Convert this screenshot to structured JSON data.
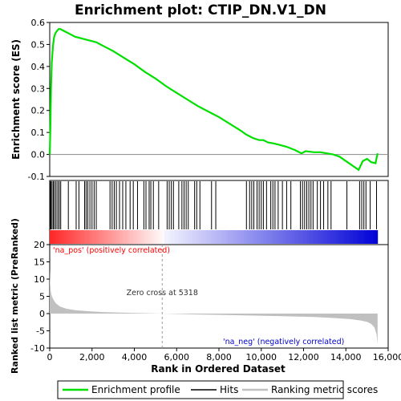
{
  "chart_data": {
    "type": "line",
    "title": "Enrichment plot: CTIP_DN.V1_DN",
    "x_axis": {
      "label": "Rank in Ordered Dataset",
      "range": [
        0,
        16000
      ],
      "ticks": [
        "0",
        "2,000",
        "4,000",
        "6,000",
        "8,000",
        "10,000",
        "12,000",
        "14,000",
        "16,000"
      ],
      "tick_values": [
        0,
        2000,
        4000,
        6000,
        8000,
        10000,
        12000,
        14000,
        16000
      ]
    },
    "top_panel": {
      "ylabel": "Enrichment score (ES)",
      "ylim": [
        -0.1,
        0.6
      ],
      "yticks": [
        "-0.1",
        "0.0",
        "0.1",
        "0.2",
        "0.3",
        "0.4",
        "0.5",
        "0.6"
      ],
      "ytick_values": [
        -0.1,
        0.0,
        0.1,
        0.2,
        0.3,
        0.4,
        0.5,
        0.6
      ],
      "series": [
        {
          "name": "Enrichment profile",
          "color": "#00e000",
          "x": [
            0,
            30,
            60,
            100,
            150,
            200,
            260,
            330,
            420,
            500,
            600,
            700,
            900,
            1200,
            1600,
            2000,
            2200,
            2500,
            3000,
            3500,
            4000,
            4500,
            5000,
            5500,
            6000,
            6500,
            7000,
            7500,
            8000,
            8500,
            9000,
            9300,
            9600,
            9900,
            10100,
            10300,
            10600,
            10800,
            11200,
            11600,
            11900,
            12100,
            12500,
            12800,
            13100,
            13400,
            13700,
            14000,
            14300,
            14600,
            14800,
            15000,
            15200,
            15400,
            15500
          ],
          "values": [
            0.0,
            0.12,
            0.3,
            0.42,
            0.49,
            0.53,
            0.55,
            0.56,
            0.57,
            0.57,
            0.565,
            0.56,
            0.55,
            0.535,
            0.525,
            0.515,
            0.51,
            0.495,
            0.47,
            0.44,
            0.41,
            0.375,
            0.345,
            0.31,
            0.28,
            0.25,
            0.22,
            0.195,
            0.17,
            0.14,
            0.11,
            0.09,
            0.075,
            0.065,
            0.065,
            0.055,
            0.05,
            0.045,
            0.035,
            0.02,
            0.005,
            0.015,
            0.01,
            0.01,
            0.005,
            0.0,
            -0.01,
            -0.03,
            -0.05,
            -0.07,
            -0.03,
            -0.02,
            -0.035,
            -0.04,
            0.005
          ]
        }
      ]
    },
    "hits_panel": {
      "series_name": "Hits",
      "hit_ranks": [
        20,
        60,
        110,
        170,
        230,
        300,
        380,
        450,
        520,
        880,
        1250,
        1380,
        1650,
        1720,
        1800,
        1900,
        2000,
        2100,
        2200,
        2850,
        2950,
        3050,
        3150,
        3300,
        3450,
        3600,
        3800,
        3950,
        4150,
        4450,
        4550,
        4700,
        4780,
        4900,
        5150,
        5550,
        5650,
        5750,
        5850,
        6100,
        6250,
        6350,
        6450,
        6550,
        6850,
        6950,
        7100,
        7650,
        7850,
        9300,
        9450,
        9550,
        9650,
        9800,
        9900,
        10000,
        10100,
        10250,
        10450,
        10550,
        10650,
        10800,
        11000,
        11200,
        11400,
        11850,
        11950,
        12050,
        12150,
        12250,
        12350,
        12450,
        12650,
        12800,
        12950,
        13150,
        13300,
        14050,
        14650,
        14750,
        14850,
        14950,
        15150,
        15450
      ],
      "colorbar_labels": [
        "'na_pos' (positively correlated)",
        "'na_neg' (negatively correlated)"
      ],
      "colorbar_colors": [
        "#ff0000",
        "#0000dd"
      ]
    },
    "bottom_panel": {
      "ylabel": "Ranked list metric (PreRanked)",
      "ylim": [
        -10,
        20
      ],
      "yticks": [
        "-10",
        "-5",
        "0",
        "5",
        "10",
        "15",
        "20"
      ],
      "ytick_values": [
        -10,
        -5,
        0,
        5,
        10,
        15,
        20
      ],
      "series": [
        {
          "name": "Ranking metric scores",
          "color": "#c0c0c0",
          "x": [
            0,
            20,
            50,
            100,
            200,
            300,
            500,
            800,
            1200,
            1800,
            2500,
            3500,
            5318,
            7000,
            9000,
            11000,
            12500,
            13500,
            14200,
            14700,
            15000,
            15200,
            15350,
            15450,
            15500
          ],
          "values": [
            13,
            9,
            6.5,
            5,
            3.8,
            2.9,
            2.0,
            1.4,
            1.0,
            0.7,
            0.45,
            0.25,
            0.0,
            -0.25,
            -0.5,
            -0.75,
            -1.0,
            -1.3,
            -1.6,
            -2.0,
            -2.4,
            -3.0,
            -4.0,
            -6.0,
            -8.8
          ]
        }
      ],
      "annotations": [
        "Zero cross at 5318"
      ],
      "zero_cross": 5318,
      "pos_label": "'na_pos' (positively correlated)",
      "neg_label": "'na_neg' (negatively correlated)",
      "pos_label_color": "#ff0000",
      "neg_label_color": "#0000cc"
    },
    "legend": {
      "placement": "bottom",
      "entries": [
        "Enrichment profile",
        "Hits",
        "Ranking metric scores"
      ],
      "colors": [
        "#00e000",
        "#000000",
        "#c0c0c0"
      ]
    },
    "grid": false
  }
}
